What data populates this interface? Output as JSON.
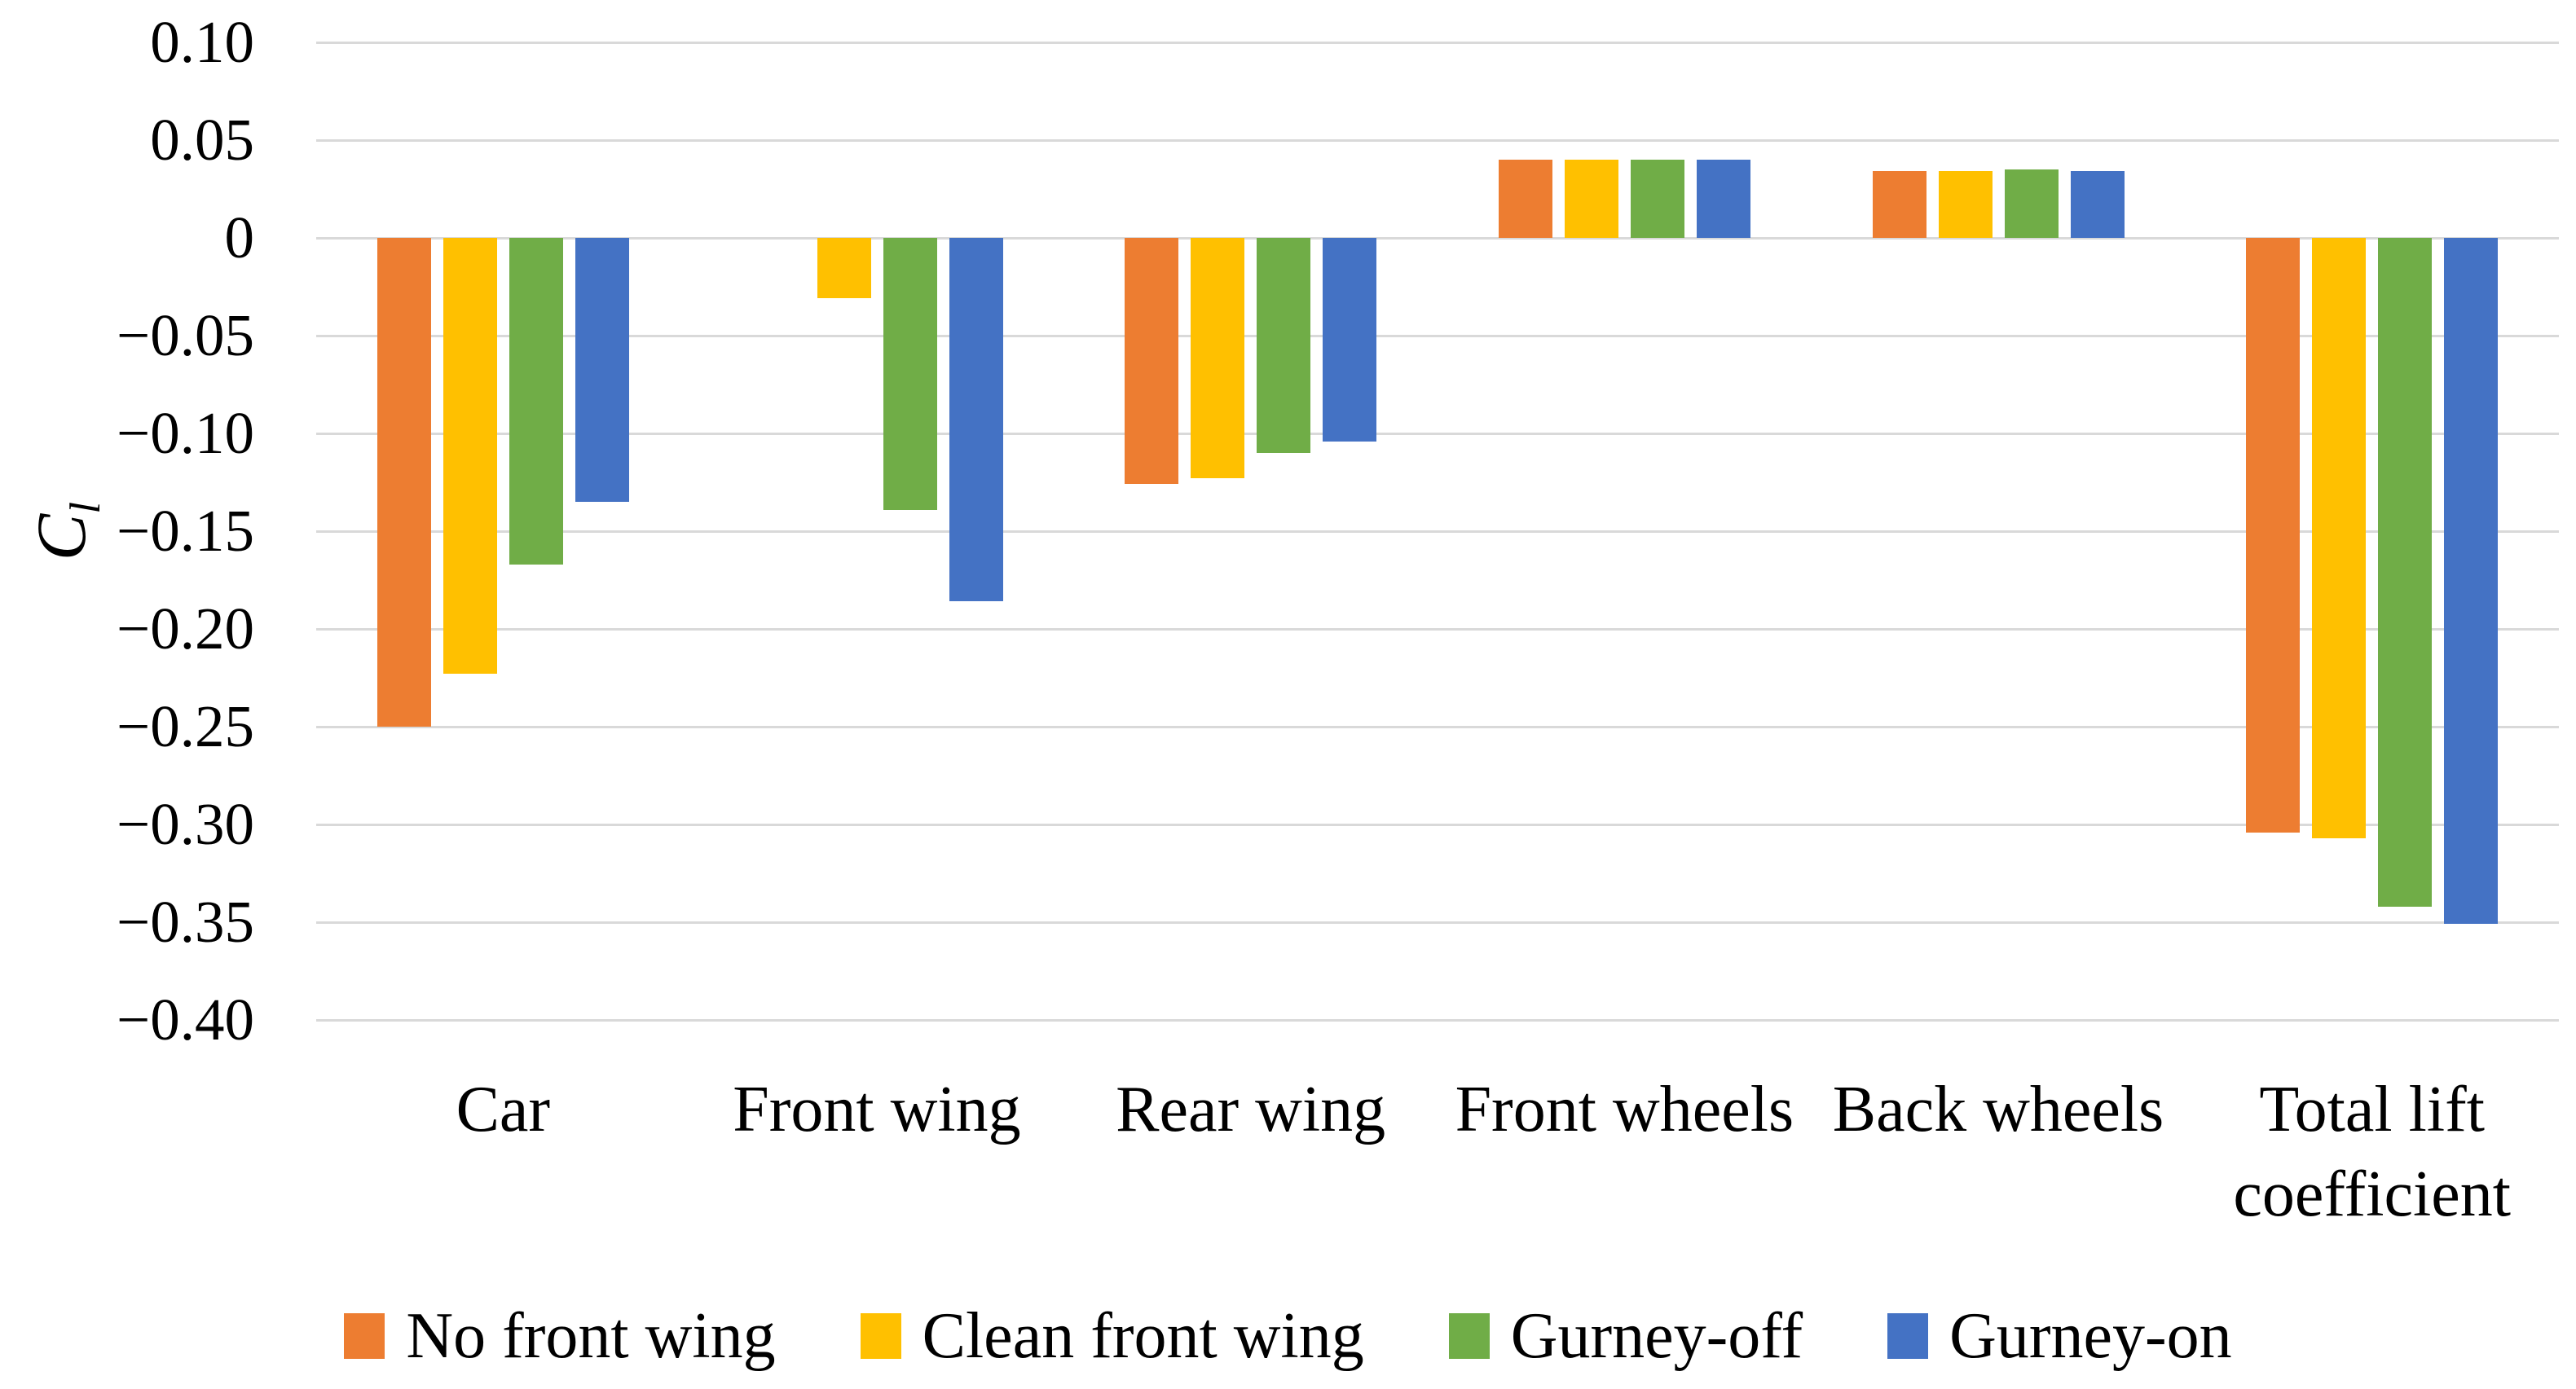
{
  "figure": {
    "type": "clustered-bar-chart",
    "background": "#FFFFFF"
  },
  "y_axis": {
    "label_main": "C",
    "label_sub": "l",
    "min": -0.4,
    "max": 0.1,
    "step": 0.05,
    "ticks": [
      "0.10",
      "0.05",
      "0",
      "−0.05",
      "−0.10",
      "−0.15",
      "−0.20",
      "−0.25",
      "−0.30",
      "−0.35",
      "−0.40"
    ]
  },
  "colors": {
    "gridline": "#D9D9D9",
    "text": "#000000"
  },
  "chart_data": {
    "type": "bar",
    "title": "",
    "xlabel": "",
    "ylabel": "Cl",
    "ylim": [
      -0.4,
      0.1
    ],
    "ytick_step": 0.05,
    "grid": true,
    "legend_position": "bottom",
    "categories": [
      "Car",
      "Front wing",
      "Rear wing",
      "Front wheels",
      "Back wheels",
      "Total lift coefficient"
    ],
    "series": [
      {
        "name": "No front wing",
        "color": "#ED7D31",
        "values": [
          -0.25,
          0.0,
          -0.126,
          0.04,
          0.034,
          -0.304
        ]
      },
      {
        "name": "Clean front wing",
        "color": "#FFC000",
        "values": [
          -0.223,
          -0.031,
          -0.123,
          0.04,
          0.034,
          -0.307
        ]
      },
      {
        "name": "Gurney-off",
        "color": "#70AD47",
        "values": [
          -0.167,
          -0.139,
          -0.11,
          0.04,
          0.035,
          -0.342
        ]
      },
      {
        "name": "Gurney-on",
        "color": "#4472C4",
        "values": [
          -0.135,
          -0.186,
          -0.104,
          0.04,
          0.034,
          -0.351
        ]
      }
    ]
  }
}
